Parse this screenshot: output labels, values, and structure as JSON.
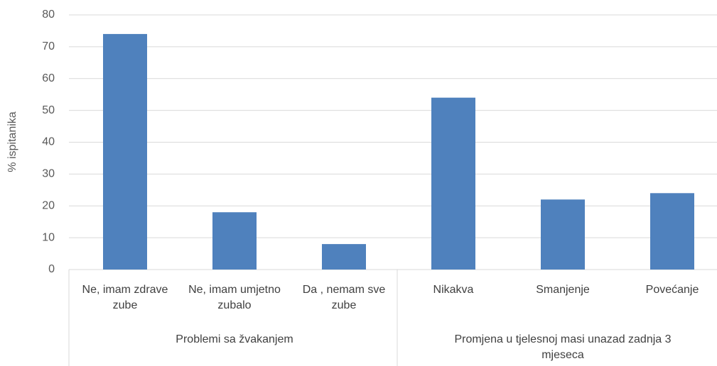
{
  "chart_data": {
    "type": "bar",
    "ylabel": "% ispitanika",
    "color": "#4f81bd",
    "ylim": [
      0,
      80
    ],
    "yticks": [
      0,
      10,
      20,
      30,
      40,
      50,
      60,
      70,
      80
    ],
    "grid": true,
    "groups": [
      {
        "label": "Problemi sa žvakanjem",
        "categories": [
          "Ne, imam zdrave zube",
          "Ne, imam umjetno zubalo",
          "Da , nemam sve zube"
        ],
        "values": [
          74,
          18,
          8
        ]
      },
      {
        "label": "Promjena u tjelesnoj masi unazad zadnja 3 mjeseca",
        "categories": [
          "Nikakva",
          "Smanjenje",
          "Povećanje"
        ],
        "values": [
          54,
          22,
          24
        ]
      }
    ]
  }
}
